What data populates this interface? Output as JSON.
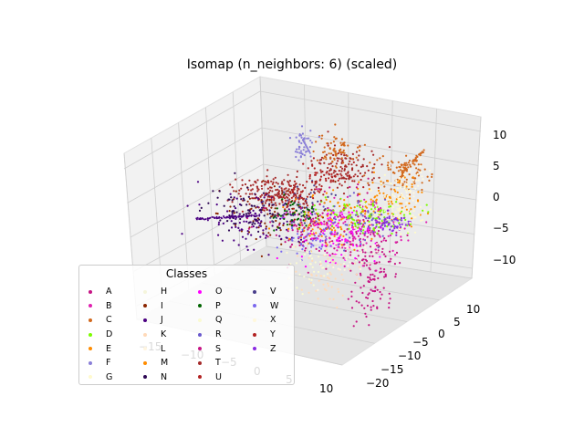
{
  "chart_data": {
    "type": "scatter",
    "title": "Isomap (n_neighbors: 6) (scaled)",
    "xlabel": "",
    "ylabel": "",
    "zlabel": "",
    "x_ticks": [
      "−15",
      "−10",
      "−5",
      "0",
      "5",
      "10"
    ],
    "y_ticks": [
      "−20",
      "−15",
      "−10",
      "−5",
      "0",
      "5",
      "10"
    ],
    "z_ticks": [
      "−10",
      "−5",
      "0",
      "5",
      "10"
    ],
    "grid": true,
    "legend": {
      "title": "Classes",
      "placement": "lower-left",
      "entries": [
        {
          "label": "A",
          "color": "#c71585"
        },
        {
          "label": "B",
          "color": "#e020b0"
        },
        {
          "label": "C",
          "color": "#d2691e"
        },
        {
          "label": "D",
          "color": "#7cfc00"
        },
        {
          "label": "E",
          "color": "#ff8c00"
        },
        {
          "label": "F",
          "color": "#8a7fd8"
        },
        {
          "label": "G",
          "color": "#fffacd"
        },
        {
          "label": "H",
          "color": "#f5f5dc"
        },
        {
          "label": "I",
          "color": "#8b2500"
        },
        {
          "label": "J",
          "color": "#4b0082"
        },
        {
          "label": "K",
          "color": "#ffdab9"
        },
        {
          "label": "L",
          "color": "#fff5e0"
        },
        {
          "label": "M",
          "color": "#ff8c00"
        },
        {
          "label": "N",
          "color": "#2e0854"
        },
        {
          "label": "O",
          "color": "#ff00ff"
        },
        {
          "label": "P",
          "color": "#006400"
        },
        {
          "label": "Q",
          "color": "#fafad2"
        },
        {
          "label": "R",
          "color": "#6a5acd"
        },
        {
          "label": "S",
          "color": "#c71585"
        },
        {
          "label": "T",
          "color": "#a52a2a"
        },
        {
          "label": "U",
          "color": "#b22222"
        },
        {
          "label": "V",
          "color": "#483d8b"
        },
        {
          "label": "W",
          "color": "#7b68ee"
        },
        {
          "label": "X",
          "color": "#fff8dc"
        },
        {
          "label": "Y",
          "color": "#b22222"
        },
        {
          "label": "Z",
          "color": "#8a2be2"
        }
      ]
    }
  }
}
